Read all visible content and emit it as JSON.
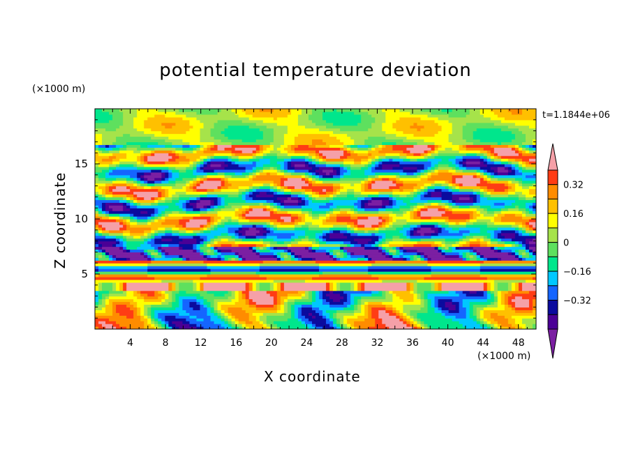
{
  "colors": {
    "levels": [
      "#7b1fa2",
      "#4b0096",
      "#0b0b9e",
      "#1565ff",
      "#00c8ff",
      "#00e68c",
      "#5ee05e",
      "#a6e34a",
      "#ffff00",
      "#ffc000",
      "#ff8c00",
      "#ff3c14",
      "#f5a0a8"
    ]
  },
  "chart_data": {
    "type": "heatmap",
    "title": "potential temperature deviation",
    "xlabel": "X coordinate",
    "ylabel": "Z coordinate",
    "x_unit": "(×1000 m)",
    "y_unit": "(×1000 m)",
    "time_label": "t=1.1844e+06",
    "xlim": [
      0,
      50
    ],
    "ylim": [
      0,
      20
    ],
    "x_ticks": [
      4,
      8,
      12,
      16,
      20,
      24,
      28,
      32,
      36,
      40,
      44,
      48
    ],
    "y_ticks": [
      5,
      10,
      15
    ],
    "colorbar": {
      "min": -0.48,
      "max": 0.48,
      "step": 0.08,
      "tick_values": [
        0.32,
        0.16,
        0,
        -0.16,
        -0.32
      ],
      "tick_labels": [
        "0.32",
        "0.16",
        "0",
        "−0.16",
        "−0.32"
      ]
    }
  }
}
